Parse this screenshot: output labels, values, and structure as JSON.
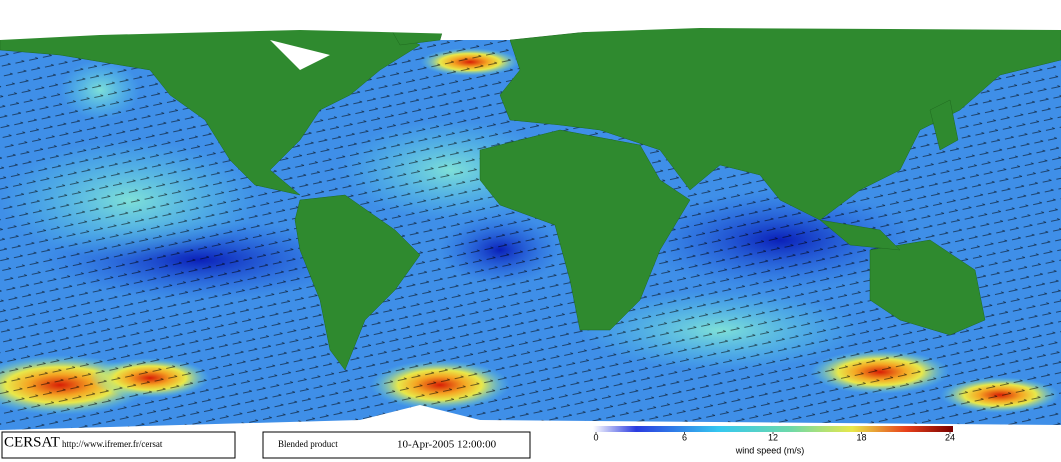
{
  "credit": {
    "name": "CERSAT",
    "url": "http://www.ifremer.fr/cersat"
  },
  "product": {
    "label": "Blended product",
    "date": "10-Apr-2005 12:00:00"
  },
  "colorbar": {
    "label": "wind speed (m/s)",
    "lim": [
      0,
      24
    ],
    "ticks": [
      0,
      6,
      12,
      18,
      24
    ]
  }
}
